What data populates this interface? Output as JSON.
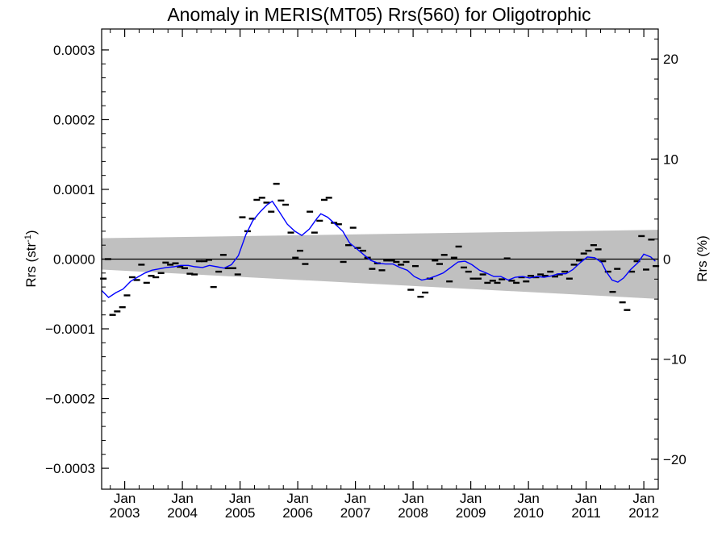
{
  "chart_data": {
    "type": "line",
    "title": "Anomaly in MERIS(MT05) Rrs(560) for Oligotrophic",
    "ylabel_left": "Rrs (str",
    "ylabel_left_sup": "-1",
    "ylabel_left_close": ")",
    "ylabel_right": "Rrs (%)",
    "ylim_left": [
      -0.00033,
      0.00033
    ],
    "ylim_right": [
      -23,
      23
    ],
    "xlim": [
      2002.6,
      2012.25
    ],
    "yticks_left": [
      {
        "value": -0.0003,
        "label": "−0.0003"
      },
      {
        "value": -0.0002,
        "label": "−0.0002"
      },
      {
        "value": -0.0001,
        "label": "−0.0001"
      },
      {
        "value": 0,
        "label": "0.0000"
      },
      {
        "value": 0.0001,
        "label": "0.0001"
      },
      {
        "value": 0.0002,
        "label": "0.0002"
      },
      {
        "value": 0.0003,
        "label": "0.0003"
      }
    ],
    "yticks_right": [
      {
        "value": -20,
        "label": "−20"
      },
      {
        "value": -10,
        "label": "−10"
      },
      {
        "value": 0,
        "label": "0"
      },
      {
        "value": 10,
        "label": "10"
      },
      {
        "value": 20,
        "label": "20"
      }
    ],
    "xticks": [
      {
        "value": 2003,
        "month": "Jan",
        "year": "2003"
      },
      {
        "value": 2004,
        "month": "Jan",
        "year": "2004"
      },
      {
        "value": 2005,
        "month": "Jan",
        "year": "2005"
      },
      {
        "value": 2006,
        "month": "Jan",
        "year": "2006"
      },
      {
        "value": 2007,
        "month": "Jan",
        "year": "2007"
      },
      {
        "value": 2008,
        "month": "Jan",
        "year": "2008"
      },
      {
        "value": 2009,
        "month": "Jan",
        "year": "2009"
      },
      {
        "value": 2010,
        "month": "Jan",
        "year": "2010"
      },
      {
        "value": 2011,
        "month": "Jan",
        "year": "2011"
      },
      {
        "value": 2012,
        "month": "Jan",
        "year": "2012"
      }
    ],
    "band": {
      "x": [
        2002.6,
        2012.25
      ],
      "upper": [
        3e-05,
        4.2e-05
      ],
      "lower": [
        -1.5e-05,
        -5.7e-05
      ],
      "color": "#c0c0c0"
    },
    "zero_line": 0,
    "smoothed_series": {
      "color": "#0000ff",
      "points": [
        [
          2002.6,
          -4.5e-05
        ],
        [
          2002.72,
          -5.5e-05
        ],
        [
          2002.85,
          -4.8e-05
        ],
        [
          2002.97,
          -4.3e-05
        ],
        [
          2003.1,
          -3.2e-05
        ],
        [
          2003.22,
          -2.6e-05
        ],
        [
          2003.35,
          -2e-05
        ],
        [
          2003.47,
          -1.6e-05
        ],
        [
          2003.6,
          -1.4e-05
        ],
        [
          2003.72,
          -1.2e-05
        ],
        [
          2003.85,
          -1.1e-05
        ],
        [
          2003.97,
          -9e-06
        ],
        [
          2004.1,
          -9e-06
        ],
        [
          2004.22,
          -1.1e-05
        ],
        [
          2004.35,
          -1.2e-05
        ],
        [
          2004.47,
          -9e-06
        ],
        [
          2004.6,
          -1.1e-05
        ],
        [
          2004.72,
          -1.3e-05
        ],
        [
          2004.85,
          -8e-06
        ],
        [
          2004.97,
          5e-06
        ],
        [
          2005.1,
          3.5e-05
        ],
        [
          2005.22,
          5.5e-05
        ],
        [
          2005.35,
          6.8e-05
        ],
        [
          2005.47,
          7.8e-05
        ],
        [
          2005.56,
          8.3e-05
        ],
        [
          2005.68,
          6.8e-05
        ],
        [
          2005.82,
          5e-05
        ],
        [
          2005.95,
          4e-05
        ],
        [
          2006.07,
          3.4e-05
        ],
        [
          2006.2,
          4.3e-05
        ],
        [
          2006.33,
          5.8e-05
        ],
        [
          2006.4,
          6.5e-05
        ],
        [
          2006.52,
          6e-05
        ],
        [
          2006.65,
          5e-05
        ],
        [
          2006.78,
          4e-05
        ],
        [
          2006.9,
          2.3e-05
        ],
        [
          2007.02,
          1.5e-05
        ],
        [
          2007.15,
          6e-06
        ],
        [
          2007.27,
          -2e-06
        ],
        [
          2007.4,
          -6e-06
        ],
        [
          2007.52,
          -7e-06
        ],
        [
          2007.65,
          -7e-06
        ],
        [
          2007.77,
          -1.2e-05
        ],
        [
          2007.9,
          -1.6e-05
        ],
        [
          2008.02,
          -2.5e-05
        ],
        [
          2008.15,
          -3e-05
        ],
        [
          2008.27,
          -2.8e-05
        ],
        [
          2008.4,
          -2.4e-05
        ],
        [
          2008.52,
          -2e-05
        ],
        [
          2008.65,
          -1.2e-05
        ],
        [
          2008.78,
          -4e-06
        ],
        [
          2008.9,
          -3e-06
        ],
        [
          2009.02,
          -8e-06
        ],
        [
          2009.15,
          -1.6e-05
        ],
        [
          2009.27,
          -2e-05
        ],
        [
          2009.4,
          -2.5e-05
        ],
        [
          2009.52,
          -2.5e-05
        ],
        [
          2009.65,
          -3e-05
        ],
        [
          2009.77,
          -2.6e-05
        ],
        [
          2009.9,
          -2.5e-05
        ],
        [
          2010.02,
          -2.7e-05
        ],
        [
          2010.15,
          -2.5e-05
        ],
        [
          2010.27,
          -2.6e-05
        ],
        [
          2010.4,
          -2.4e-05
        ],
        [
          2010.52,
          -2.1e-05
        ],
        [
          2010.65,
          -2.1e-05
        ],
        [
          2010.77,
          -1.5e-05
        ],
        [
          2010.9,
          -5e-06
        ],
        [
          2011.02,
          3e-06
        ],
        [
          2011.15,
          2e-06
        ],
        [
          2011.27,
          -5e-06
        ],
        [
          2011.35,
          -1.8e-05
        ],
        [
          2011.45,
          -3e-05
        ],
        [
          2011.55,
          -3.3e-05
        ],
        [
          2011.65,
          -2.7e-05
        ],
        [
          2011.77,
          -1.5e-05
        ],
        [
          2011.9,
          -5e-06
        ],
        [
          2012.0,
          7e-06
        ],
        [
          2012.12,
          3e-06
        ],
        [
          2012.2,
          -3e-06
        ]
      ]
    },
    "monthly_series": {
      "color": "#000000",
      "points": [
        [
          2002.63,
          -2.8e-05
        ],
        [
          2002.71,
          0.0
        ],
        [
          2002.79,
          -8e-05
        ],
        [
          2002.87,
          -7.5e-05
        ],
        [
          2002.96,
          -6.9e-05
        ],
        [
          2003.04,
          -5.2e-05
        ],
        [
          2003.13,
          -2.6e-05
        ],
        [
          2003.21,
          -3e-05
        ],
        [
          2003.29,
          -8e-06
        ],
        [
          2003.38,
          -3.4e-05
        ],
        [
          2003.46,
          -2.4e-05
        ],
        [
          2003.54,
          -2.6e-05
        ],
        [
          2003.63,
          -2e-05
        ],
        [
          2003.71,
          -5e-06
        ],
        [
          2003.79,
          -8e-06
        ],
        [
          2003.88,
          -6e-06
        ],
        [
          2003.96,
          -1.1e-05
        ],
        [
          2004.04,
          -1.3e-05
        ],
        [
          2004.13,
          -2.1e-05
        ],
        [
          2004.21,
          -2.2e-05
        ],
        [
          2004.29,
          -3e-06
        ],
        [
          2004.38,
          -3e-06
        ],
        [
          2004.46,
          -1e-06
        ],
        [
          2004.54,
          -4e-05
        ],
        [
          2004.63,
          -1.8e-05
        ],
        [
          2004.71,
          6e-06
        ],
        [
          2004.79,
          -1.3e-05
        ],
        [
          2004.88,
          -1.3e-05
        ],
        [
          2004.96,
          -2.2e-05
        ],
        [
          2005.04,
          6e-05
        ],
        [
          2005.13,
          4e-05
        ],
        [
          2005.21,
          5.8e-05
        ],
        [
          2005.29,
          8.5e-05
        ],
        [
          2005.38,
          8.8e-05
        ],
        [
          2005.46,
          8.1e-05
        ],
        [
          2005.54,
          6.8e-05
        ],
        [
          2005.63,
          0.000108
        ],
        [
          2005.71,
          8.4e-05
        ],
        [
          2005.79,
          7.8e-05
        ],
        [
          2005.88,
          3.8e-05
        ],
        [
          2005.96,
          2e-06
        ],
        [
          2006.04,
          1.2e-05
        ],
        [
          2006.13,
          -7e-06
        ],
        [
          2006.21,
          6.8e-05
        ],
        [
          2006.29,
          3.8e-05
        ],
        [
          2006.38,
          5.5e-05
        ],
        [
          2006.46,
          8.5e-05
        ],
        [
          2006.54,
          8.8e-05
        ],
        [
          2006.63,
          5.2e-05
        ],
        [
          2006.71,
          5e-05
        ],
        [
          2006.79,
          -4e-06
        ],
        [
          2006.88,
          2e-05
        ],
        [
          2006.96,
          4.5e-05
        ],
        [
          2007.04,
          1.6e-05
        ],
        [
          2007.13,
          1.2e-05
        ],
        [
          2007.21,
          2e-06
        ],
        [
          2007.29,
          -1.4e-05
        ],
        [
          2007.38,
          -6e-06
        ],
        [
          2007.46,
          -1.6e-05
        ],
        [
          2007.54,
          -2e-06
        ],
        [
          2007.63,
          -2e-06
        ],
        [
          2007.71,
          -4e-06
        ],
        [
          2007.79,
          -8e-06
        ],
        [
          2007.88,
          -4e-06
        ],
        [
          2007.96,
          -4.4e-05
        ],
        [
          2008.04,
          -1e-05
        ],
        [
          2008.13,
          -5.4e-05
        ],
        [
          2008.21,
          -4.8e-05
        ],
        [
          2008.29,
          -2.8e-05
        ],
        [
          2008.38,
          -2e-06
        ],
        [
          2008.46,
          -7e-06
        ],
        [
          2008.54,
          6e-06
        ],
        [
          2008.63,
          -3.2e-05
        ],
        [
          2008.71,
          2e-06
        ],
        [
          2008.79,
          1.8e-05
        ],
        [
          2008.88,
          -1.2e-05
        ],
        [
          2008.96,
          -1.8e-05
        ],
        [
          2009.04,
          -2.8e-05
        ],
        [
          2009.13,
          -2.8e-05
        ],
        [
          2009.21,
          -2.2e-05
        ],
        [
          2009.29,
          -3.4e-05
        ],
        [
          2009.38,
          -3.1e-05
        ],
        [
          2009.46,
          -3.4e-05
        ],
        [
          2009.54,
          -2.9e-05
        ],
        [
          2009.63,
          1e-06
        ],
        [
          2009.71,
          -3.1e-05
        ],
        [
          2009.79,
          -3.4e-05
        ],
        [
          2009.88,
          -2.6e-05
        ],
        [
          2009.96,
          -3.2e-05
        ],
        [
          2010.04,
          -2.4e-05
        ],
        [
          2010.13,
          -2.6e-05
        ],
        [
          2010.21,
          -2.2e-05
        ],
        [
          2010.29,
          -2.4e-05
        ],
        [
          2010.38,
          -1.8e-05
        ],
        [
          2010.46,
          -2.5e-05
        ],
        [
          2010.54,
          -2.2e-05
        ],
        [
          2010.63,
          -1.8e-05
        ],
        [
          2010.71,
          -2.8e-05
        ],
        [
          2010.79,
          -8e-06
        ],
        [
          2010.88,
          -2e-06
        ],
        [
          2010.96,
          8e-06
        ],
        [
          2011.04,
          1.2e-05
        ],
        [
          2011.13,
          2e-05
        ],
        [
          2011.21,
          1.4e-05
        ],
        [
          2011.29,
          -3e-06
        ],
        [
          2011.38,
          -1.8e-05
        ],
        [
          2011.46,
          -4.7e-05
        ],
        [
          2011.54,
          -1.4e-05
        ],
        [
          2011.63,
          -6.2e-05
        ],
        [
          2011.71,
          -7.3e-05
        ],
        [
          2011.79,
          -1.8e-05
        ],
        [
          2011.88,
          -3e-06
        ],
        [
          2011.96,
          3.3e-05
        ],
        [
          2012.04,
          -1.5e-05
        ],
        [
          2012.13,
          2.8e-05
        ],
        [
          2012.21,
          -1e-05
        ]
      ]
    }
  }
}
